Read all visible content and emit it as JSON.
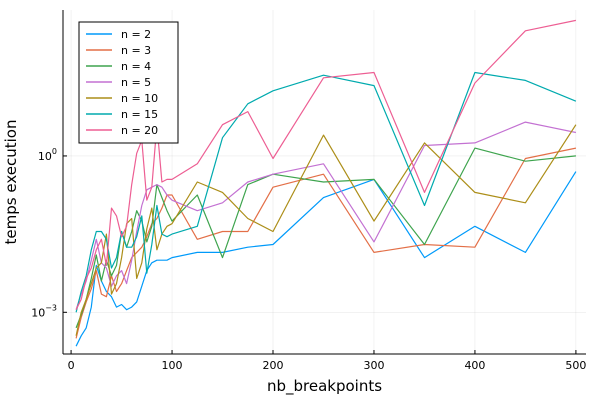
{
  "chart_data": {
    "type": "line",
    "xlabel": "nb_breakpoints",
    "ylabel": "temps execution",
    "y_scale": "log10",
    "xlim": [
      -8,
      510
    ],
    "ylim_log10": [
      -3.8,
      2.8
    ],
    "x_ticks": [
      0,
      100,
      200,
      300,
      400,
      500
    ],
    "x_tick_labels": [
      "0",
      "100",
      "200",
      "300",
      "400",
      "500"
    ],
    "y_ticks_log10": [
      -3,
      0
    ],
    "y_tick_labels": [
      {
        "base": "10",
        "exp": "−3"
      },
      {
        "base": "10",
        "exp": "0"
      }
    ],
    "grid": true,
    "legend_position": "top-left",
    "x": [
      5,
      10,
      15,
      20,
      25,
      30,
      35,
      40,
      45,
      50,
      55,
      60,
      65,
      70,
      75,
      80,
      85,
      90,
      95,
      100,
      125,
      150,
      175,
      200,
      250,
      300,
      350,
      400,
      450,
      500
    ],
    "series": [
      {
        "name": "n = 2",
        "color": "#009AFA",
        "log10_values": [
          -3.65,
          -3.45,
          -3.3,
          -2.9,
          -2.1,
          -2.4,
          -2.6,
          -2.7,
          -2.9,
          -2.85,
          -2.95,
          -2.9,
          -2.8,
          -2.5,
          -2.2,
          -2.05,
          -2.0,
          -2.0,
          -2.0,
          -1.95,
          -1.85,
          -1.85,
          -1.75,
          -1.7,
          -0.8,
          -0.45,
          -1.95,
          -1.35,
          -1.85,
          -0.3
        ]
      },
      {
        "name": "n = 3",
        "color": "#E36F47",
        "log10_values": [
          -3.5,
          -3.1,
          -2.8,
          -2.55,
          -2.2,
          -2.65,
          -2.7,
          -2.3,
          -2.6,
          -2.45,
          -2.2,
          -1.95,
          -1.85,
          -1.75,
          -1.55,
          -1.3,
          -1.2,
          -1.0,
          -0.75,
          -0.75,
          -1.6,
          -1.45,
          -1.45,
          -0.6,
          -0.35,
          -1.85,
          -1.7,
          -1.75,
          -0.05,
          0.15
        ]
      },
      {
        "name": "n = 4",
        "color": "#3EA44E",
        "log10_values": [
          -3.3,
          -3.05,
          -2.75,
          -2.35,
          -1.9,
          -2.4,
          -2.0,
          -2.3,
          -2.1,
          -1.45,
          -1.75,
          -1.45,
          -1.05,
          -1.25,
          -1.65,
          -1.35,
          -0.55,
          -0.8,
          -1.05,
          -1.25,
          -0.75,
          -1.95,
          -0.55,
          -0.35,
          -0.5,
          -0.45,
          -1.7,
          0.15,
          -0.1,
          0.0
        ]
      },
      {
        "name": "n = 5",
        "color": "#C371D2",
        "log10_values": [
          -2.95,
          -2.65,
          -2.4,
          -2.0,
          -1.6,
          -2.05,
          -2.15,
          -2.5,
          -2.3,
          -2.2,
          -2.45,
          -2.0,
          -1.45,
          -0.95,
          -0.65,
          -0.6,
          -0.55,
          -0.6,
          -0.75,
          -0.85,
          -1.05,
          -0.9,
          -0.5,
          -0.35,
          -0.15,
          -1.65,
          0.2,
          0.25,
          0.65,
          0.45
        ]
      },
      {
        "name": "n = 10",
        "color": "#AC8E18",
        "log10_values": [
          -3.45,
          -3.0,
          -2.75,
          -2.45,
          -2.15,
          -2.05,
          -1.5,
          -2.65,
          -2.45,
          -1.95,
          -1.3,
          -1.2,
          -2.35,
          -2.05,
          -1.4,
          -1.0,
          -1.8,
          -1.5,
          -1.35,
          -1.3,
          -0.5,
          -0.7,
          -1.2,
          -1.45,
          0.4,
          -1.25,
          0.25,
          -0.7,
          -0.9,
          0.6
        ]
      },
      {
        "name": "n = 15",
        "color": "#00AAAE",
        "log10_values": [
          -3.0,
          -2.6,
          -2.3,
          -1.8,
          -1.45,
          -1.45,
          -1.6,
          -2.15,
          -1.95,
          -1.45,
          -1.75,
          -1.75,
          -1.55,
          -1.15,
          -2.25,
          -1.7,
          -0.95,
          -1.5,
          -1.55,
          -1.5,
          -1.35,
          0.35,
          1.0,
          1.25,
          1.55,
          1.35,
          -0.95,
          1.6,
          1.45,
          1.05
        ]
      },
      {
        "name": "n = 20",
        "color": "#ED5E93",
        "log10_values": [
          -2.95,
          -2.75,
          -2.35,
          -2.15,
          -1.8,
          -1.6,
          -2.1,
          -1.0,
          -1.15,
          -1.55,
          -1.35,
          -0.55,
          0.05,
          0.3,
          -0.85,
          -0.6,
          0.6,
          -0.5,
          -0.45,
          -0.45,
          -0.15,
          0.6,
          0.85,
          -0.05,
          1.5,
          1.6,
          -0.7,
          1.4,
          2.4,
          2.6
        ]
      }
    ]
  }
}
